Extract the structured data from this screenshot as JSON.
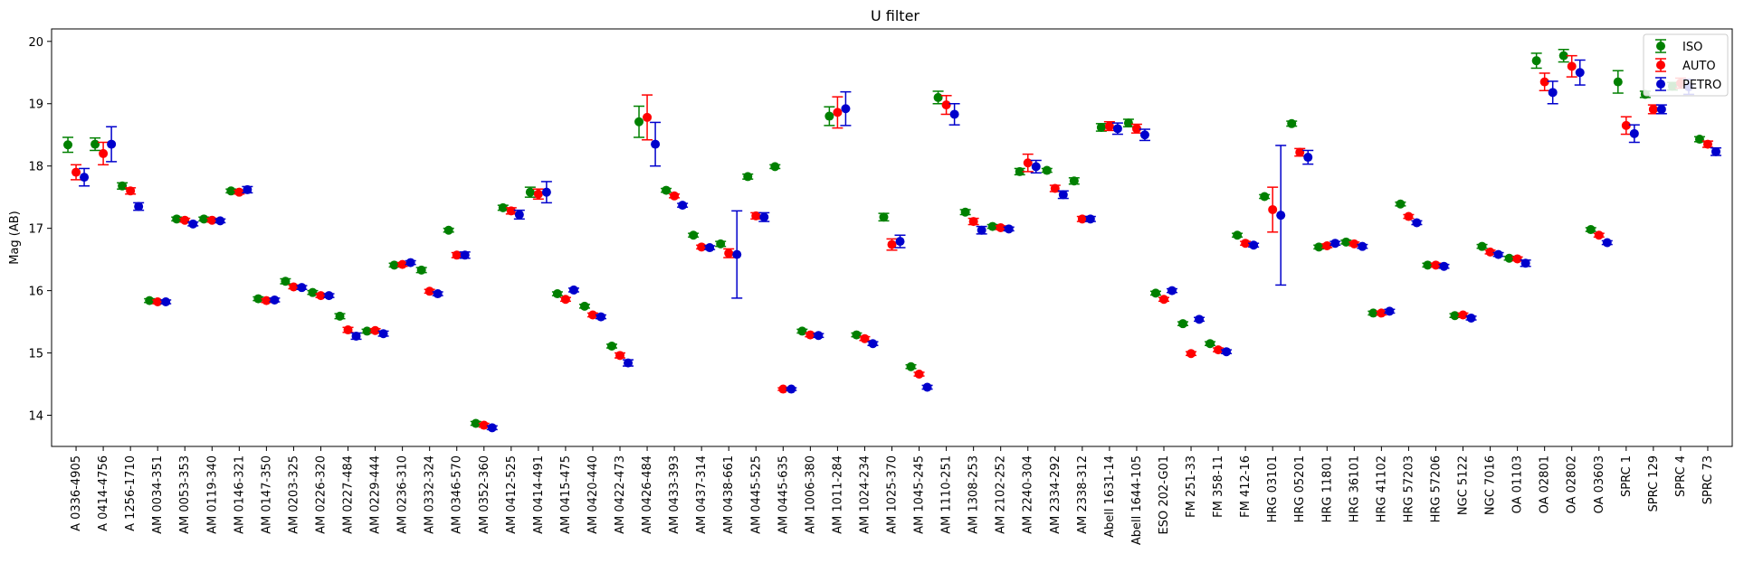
{
  "chart_data": {
    "type": "scatter",
    "title": "U filter",
    "xlabel": "",
    "ylabel": "Mag (AB)",
    "ylim": [
      13.5,
      20.2
    ],
    "yticks": [
      14,
      15,
      16,
      17,
      18,
      19,
      20
    ],
    "grid": false,
    "legend_position": "top-right",
    "categories": [
      "A 0336-4905",
      "A 0414-4756",
      "A 1256-1710",
      "AM 0034-351",
      "AM 0053-353",
      "AM 0119-340",
      "AM 0146-321",
      "AM 0147-350",
      "AM 0203-325",
      "AM 0226-320",
      "AM 0227-484",
      "AM 0229-444",
      "AM 0236-310",
      "AM 0332-324",
      "AM 0346-570",
      "AM 0352-360",
      "AM 0412-525",
      "AM 0414-491",
      "AM 0415-475",
      "AM 0420-440",
      "AM 0422-473",
      "AM 0426-484",
      "AM 0433-393",
      "AM 0437-314",
      "AM 0438-661",
      "AM 0445-525",
      "AM 0445-635",
      "AM 1006-380",
      "AM 1011-284",
      "AM 1024-234",
      "AM 1025-370",
      "AM 1045-245",
      "AM 1110-251",
      "AM 1308-253",
      "AM 2102-252",
      "AM 2240-304",
      "AM 2334-292",
      "AM 2338-312",
      "Abell 1631-14",
      "Abell 1644-105",
      "ESO 202-G01",
      "FM 251-33",
      "FM 358-11",
      "FM 412-16",
      "HRG 03101",
      "HRG 05201",
      "HRG 11801",
      "HRG 36101",
      "HRG 41102",
      "HRG 57203",
      "HRG 57206",
      "NGC 5122",
      "NGC 7016",
      "OA 01103",
      "OA 02801",
      "OA 02802",
      "OA 03603",
      "SPRC 1",
      "SPRC 129",
      "SPRC 4",
      "SPRC 73"
    ],
    "point_groups": [
      [
        [
          0,
          18.34,
          0.12,
          0
        ],
        [
          0,
          17.9,
          0.12,
          1
        ],
        [
          0,
          17.82,
          0.14,
          2
        ]
      ],
      [
        [
          1,
          18.35,
          0.1,
          0
        ],
        [
          1,
          18.2,
          0.18,
          1
        ],
        [
          1,
          18.35,
          0.28,
          2
        ]
      ],
      [
        [
          2,
          17.68,
          0.05,
          0
        ],
        [
          2,
          17.6,
          0.05,
          1
        ],
        [
          2,
          17.35,
          0.06,
          2
        ]
      ],
      [
        [
          3,
          15.84,
          0.03,
          0
        ],
        [
          3,
          15.82,
          0.03,
          1
        ],
        [
          3,
          15.82,
          0.03,
          2
        ]
      ],
      [
        [
          4,
          17.15,
          0.03,
          0
        ],
        [
          4,
          17.13,
          0.03,
          1
        ],
        [
          4,
          17.07,
          0.03,
          2
        ]
      ],
      [
        [
          5,
          17.15,
          0.03,
          0
        ],
        [
          5,
          17.13,
          0.03,
          1
        ],
        [
          5,
          17.12,
          0.03,
          2
        ]
      ],
      [
        [
          6,
          17.6,
          0.03,
          0
        ],
        [
          6,
          17.58,
          0.03,
          1
        ],
        [
          6,
          17.62,
          0.05,
          2
        ]
      ],
      [
        [
          7,
          15.87,
          0.03,
          0
        ],
        [
          7,
          15.84,
          0.03,
          1
        ],
        [
          7,
          15.85,
          0.03,
          2
        ]
      ],
      [
        [
          8,
          16.15,
          0.04,
          0
        ],
        [
          8,
          16.06,
          0.03,
          1
        ],
        [
          8,
          16.05,
          0.03,
          2
        ]
      ],
      [
        [
          9,
          15.97,
          0.03,
          0
        ],
        [
          9,
          15.92,
          0.03,
          1
        ],
        [
          9,
          15.92,
          0.03,
          2
        ]
      ],
      [
        [
          10,
          15.59,
          0.04,
          0
        ],
        [
          10,
          15.37,
          0.04,
          1
        ],
        [
          10,
          15.27,
          0.05,
          2
        ]
      ],
      [
        [
          11,
          15.35,
          0.03,
          0
        ],
        [
          11,
          15.36,
          0.03,
          1
        ],
        [
          11,
          15.31,
          0.04,
          2
        ]
      ],
      [
        [
          12,
          16.41,
          0.03,
          0
        ],
        [
          12,
          16.42,
          0.03,
          1
        ],
        [
          12,
          16.45,
          0.03,
          2
        ]
      ],
      [
        [
          13,
          16.33,
          0.04,
          0
        ],
        [
          13,
          15.99,
          0.03,
          1
        ],
        [
          13,
          15.95,
          0.03,
          2
        ]
      ],
      [
        [
          14,
          16.97,
          0.03,
          0
        ],
        [
          14,
          16.57,
          0.04,
          1
        ],
        [
          14,
          16.57,
          0.05,
          2
        ]
      ],
      [
        [
          15,
          13.87,
          0.03,
          0
        ],
        [
          15,
          13.84,
          0.03,
          1
        ],
        [
          15,
          13.8,
          0.03,
          2
        ]
      ],
      [
        [
          16,
          17.33,
          0.04,
          0
        ],
        [
          16,
          17.28,
          0.05,
          1
        ],
        [
          16,
          17.22,
          0.07,
          2
        ]
      ],
      [
        [
          17,
          17.58,
          0.08,
          0
        ],
        [
          17,
          17.55,
          0.08,
          1
        ],
        [
          17,
          17.58,
          0.17,
          2
        ]
      ],
      [
        [
          18,
          15.95,
          0.03,
          0
        ],
        [
          18,
          15.86,
          0.03,
          1
        ],
        [
          18,
          16.01,
          0.03,
          2
        ]
      ],
      [
        [
          19,
          15.75,
          0.03,
          0
        ],
        [
          19,
          15.61,
          0.03,
          1
        ],
        [
          19,
          15.58,
          0.03,
          2
        ]
      ],
      [
        [
          20,
          15.11,
          0.03,
          0
        ],
        [
          20,
          14.96,
          0.04,
          1
        ],
        [
          20,
          14.84,
          0.05,
          2
        ]
      ],
      [
        [
          21,
          18.71,
          0.25,
          0
        ],
        [
          21,
          18.78,
          0.36,
          1
        ],
        [
          21,
          18.35,
          0.35,
          2
        ]
      ],
      [
        [
          22,
          17.61,
          0.03,
          0
        ],
        [
          22,
          17.52,
          0.03,
          1
        ],
        [
          22,
          17.37,
          0.03,
          2
        ]
      ],
      [
        [
          23,
          16.89,
          0.03,
          0
        ],
        [
          23,
          16.7,
          0.03,
          1
        ],
        [
          23,
          16.69,
          0.03,
          2
        ]
      ],
      [
        [
          24,
          16.75,
          0.04,
          0
        ],
        [
          24,
          16.6,
          0.07,
          1
        ],
        [
          24,
          16.58,
          0.7,
          2
        ]
      ],
      [
        [
          25,
          17.83,
          0.04,
          0
        ],
        [
          25,
          17.2,
          0.05,
          1
        ],
        [
          25,
          17.18,
          0.07,
          2
        ]
      ],
      [
        [
          26,
          17.99,
          0.03,
          0
        ],
        [
          26,
          14.42,
          0.02,
          1
        ],
        [
          26,
          14.42,
          0.02,
          2
        ]
      ],
      [
        [
          27,
          15.35,
          0.03,
          0
        ],
        [
          27,
          15.29,
          0.03,
          1
        ],
        [
          27,
          15.28,
          0.03,
          2
        ]
      ],
      [
        [
          28,
          18.8,
          0.15,
          0
        ],
        [
          28,
          18.86,
          0.25,
          1
        ],
        [
          28,
          18.92,
          0.27,
          2
        ]
      ],
      [
        [
          29,
          15.29,
          0.03,
          0
        ],
        [
          29,
          15.23,
          0.03,
          1
        ],
        [
          29,
          15.15,
          0.03,
          2
        ]
      ],
      [
        [
          30,
          17.18,
          0.06,
          0
        ],
        [
          30,
          16.74,
          0.09,
          1
        ],
        [
          30,
          16.79,
          0.1,
          2
        ]
      ],
      [
        [
          31,
          14.78,
          0.03,
          0
        ],
        [
          31,
          14.66,
          0.03,
          1
        ],
        [
          31,
          14.45,
          0.03,
          2
        ]
      ],
      [
        [
          32,
          19.1,
          0.1,
          0
        ],
        [
          32,
          18.98,
          0.15,
          1
        ],
        [
          32,
          18.83,
          0.17,
          2
        ]
      ],
      [
        [
          33,
          17.26,
          0.04,
          0
        ],
        [
          33,
          17.11,
          0.05,
          1
        ],
        [
          33,
          16.97,
          0.06,
          2
        ]
      ],
      [
        [
          34,
          17.03,
          0.03,
          0
        ],
        [
          34,
          17.01,
          0.03,
          1
        ],
        [
          34,
          16.99,
          0.03,
          2
        ]
      ],
      [
        [
          35,
          17.91,
          0.05,
          0
        ],
        [
          35,
          18.05,
          0.14,
          1
        ],
        [
          35,
          17.99,
          0.1,
          2
        ]
      ],
      [
        [
          36,
          17.93,
          0.03,
          0
        ],
        [
          36,
          17.64,
          0.05,
          1
        ],
        [
          36,
          17.54,
          0.06,
          2
        ]
      ],
      [
        [
          37,
          17.76,
          0.05,
          0
        ],
        [
          37,
          17.15,
          0.04,
          1
        ],
        [
          37,
          17.15,
          0.04,
          2
        ]
      ],
      [
        [
          38,
          18.62,
          0.06,
          0
        ],
        [
          38,
          18.64,
          0.07,
          1
        ],
        [
          38,
          18.6,
          0.09,
          2
        ]
      ],
      [
        [
          39,
          18.69,
          0.06,
          0
        ],
        [
          39,
          18.6,
          0.07,
          1
        ],
        [
          39,
          18.5,
          0.09,
          2
        ]
      ],
      [
        [
          40,
          15.96,
          0.03,
          0
        ],
        [
          40,
          15.86,
          0.03,
          1
        ],
        [
          40,
          16.0,
          0.03,
          2
        ]
      ],
      [
        [
          41,
          15.47,
          0.03,
          0
        ],
        [
          41,
          14.99,
          0.03,
          1
        ],
        [
          41,
          15.54,
          0.03,
          2
        ]
      ],
      [
        [
          42,
          15.15,
          0.03,
          0
        ],
        [
          42,
          15.05,
          0.03,
          1
        ],
        [
          42,
          15.02,
          0.03,
          2
        ]
      ],
      [
        [
          43,
          16.89,
          0.03,
          0
        ],
        [
          43,
          16.76,
          0.03,
          1
        ],
        [
          43,
          16.73,
          0.03,
          2
        ]
      ],
      [
        [
          44,
          17.51,
          0.03,
          0
        ],
        [
          44,
          17.3,
          0.36,
          1
        ],
        [
          44,
          17.21,
          1.12,
          2
        ]
      ],
      [
        [
          45,
          18.68,
          0.04,
          0
        ],
        [
          45,
          18.22,
          0.06,
          1
        ],
        [
          45,
          18.14,
          0.11,
          2
        ]
      ],
      [
        [
          46,
          16.7,
          0.03,
          0
        ],
        [
          46,
          16.72,
          0.03,
          1
        ],
        [
          46,
          16.76,
          0.03,
          2
        ]
      ],
      [
        [
          47,
          16.78,
          0.03,
          0
        ],
        [
          47,
          16.75,
          0.03,
          1
        ],
        [
          47,
          16.71,
          0.03,
          2
        ]
      ],
      [
        [
          48,
          15.64,
          0.03,
          0
        ],
        [
          48,
          15.64,
          0.03,
          1
        ],
        [
          48,
          15.67,
          0.03,
          2
        ]
      ],
      [
        [
          49,
          17.39,
          0.03,
          0
        ],
        [
          49,
          17.19,
          0.03,
          1
        ],
        [
          49,
          17.09,
          0.03,
          2
        ]
      ],
      [
        [
          50,
          16.41,
          0.03,
          0
        ],
        [
          50,
          16.41,
          0.03,
          1
        ],
        [
          50,
          16.39,
          0.03,
          2
        ]
      ],
      [
        [
          51,
          15.6,
          0.03,
          0
        ],
        [
          51,
          15.61,
          0.03,
          1
        ],
        [
          51,
          15.56,
          0.03,
          2
        ]
      ],
      [
        [
          52,
          16.71,
          0.03,
          0
        ],
        [
          52,
          16.62,
          0.03,
          1
        ],
        [
          52,
          16.58,
          0.03,
          2
        ]
      ],
      [
        [
          53,
          16.52,
          0.03,
          0
        ],
        [
          53,
          16.51,
          0.03,
          1
        ],
        [
          53,
          16.44,
          0.05,
          2
        ]
      ],
      [
        [
          54,
          19.69,
          0.12,
          0
        ],
        [
          54,
          19.35,
          0.14,
          1
        ],
        [
          54,
          19.18,
          0.18,
          2
        ]
      ],
      [
        [
          55,
          19.77,
          0.1,
          0
        ],
        [
          55,
          19.6,
          0.17,
          1
        ],
        [
          55,
          19.5,
          0.2,
          2
        ]
      ],
      [
        [
          56,
          16.98,
          0.03,
          0
        ],
        [
          56,
          16.89,
          0.03,
          1
        ],
        [
          56,
          16.77,
          0.03,
          2
        ]
      ],
      [
        [
          57,
          19.35,
          0.18,
          0
        ],
        [
          57,
          18.65,
          0.14,
          1
        ],
        [
          57,
          18.52,
          0.14,
          2
        ]
      ],
      [
        [
          58,
          19.15,
          0.05,
          0
        ],
        [
          58,
          18.91,
          0.07,
          1
        ],
        [
          58,
          18.91,
          0.07,
          2
        ]
      ],
      [
        [
          59,
          19.28,
          0.06,
          0
        ],
        [
          59,
          19.33,
          0.08,
          1
        ],
        [
          59,
          19.27,
          0.12,
          2
        ]
      ],
      [
        [
          60,
          18.43,
          0.04,
          0
        ],
        [
          60,
          18.35,
          0.05,
          1
        ],
        [
          60,
          18.23,
          0.06,
          2
        ]
      ]
    ],
    "series": [
      {
        "name": "ISO",
        "color": "#008000"
      },
      {
        "name": "AUTO",
        "color": "#ff0000"
      },
      {
        "name": "PETRO",
        "color": "#0000cc"
      }
    ]
  }
}
